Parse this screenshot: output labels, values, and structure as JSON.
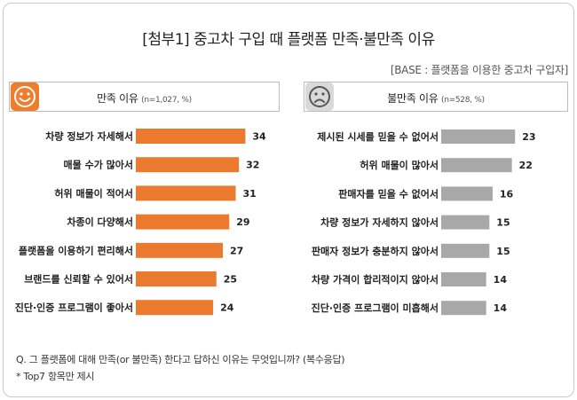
{
  "title": "[첨부1] 중고차 구입 때 플랫폼 만족·불만족 이유",
  "base": "[BASE : 플랫폼을 이용한 중고차 구입자]",
  "left_panel": {
    "label": "만족 이유",
    "sub": "(n=1,027, %)",
    "icon": "smiley-icon"
  },
  "right_panel": {
    "label": "불만족 이유",
    "sub": "(n=528, %)",
    "icon": "frown-icon"
  },
  "footnote_q": "Q. 그 플랫폼에 대해 만족(or 불만족) 한다고 답하신 이유는 무엇입니까? (복수응답)",
  "footnote_top": "* Top7 항목만 제시",
  "colors": {
    "satisfied": "#ec7a2e",
    "dissatisfied": "#a8a8a8",
    "face_satisfied": "#ef7d2c",
    "face_dissatisfied": "#d9d9d9"
  },
  "chart_data": [
    {
      "type": "bar",
      "orientation": "horizontal",
      "name": "만족 이유",
      "categories": [
        "차량 정보가 자세해서",
        "매물 수가 많아서",
        "허위 매물이 적어서",
        "차종이 다양해서",
        "플랫폼을 이용하기 편리해서",
        "브랜드를 신뢰할 수 있어서",
        "진단·인증 프로그램이 좋아서"
      ],
      "values": [
        34,
        32,
        31,
        29,
        27,
        25,
        24
      ],
      "color": "#ec7a2e"
    },
    {
      "type": "bar",
      "orientation": "horizontal",
      "name": "불만족 이유",
      "categories": [
        "제시된 시세를 믿을 수 없어서",
        "허위 매물이 많아서",
        "판매자를 믿을 수 없어서",
        "차량 정보가 자세하지 않아서",
        "판매자 정보가 충분하지 않아서",
        "차량 가격이 합리적이지 않아서",
        "진단·인증 프로그램이 미흡해서"
      ],
      "values": [
        23,
        22,
        16,
        15,
        15,
        14,
        14
      ],
      "color": "#a8a8a8"
    }
  ]
}
